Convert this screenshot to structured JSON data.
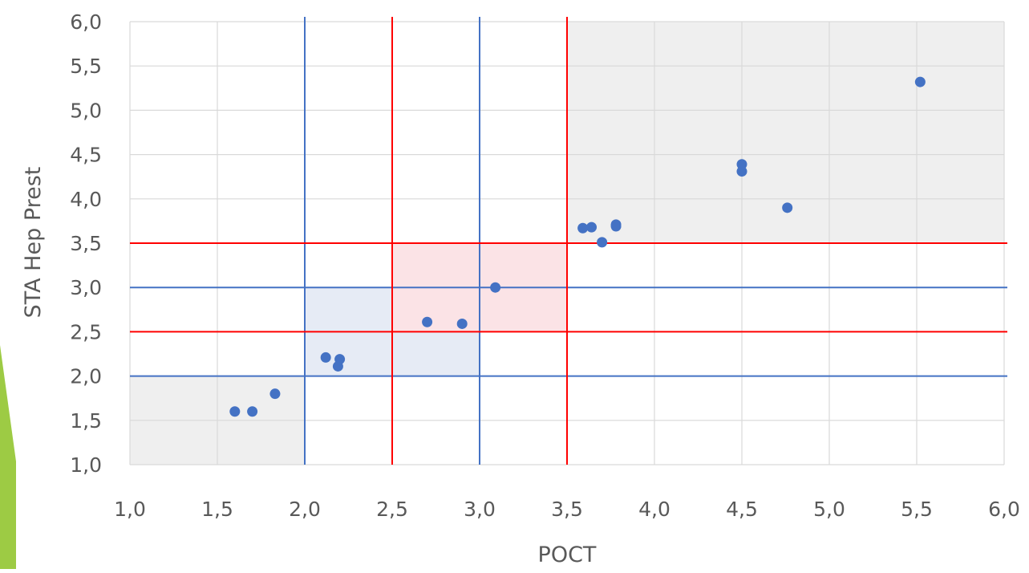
{
  "chart_data": {
    "type": "scatter",
    "title": "",
    "xlabel": "POCT",
    "ylabel": "STA Hep Prest",
    "xlim": [
      1.0,
      6.0
    ],
    "ylim": [
      1.0,
      6.0
    ],
    "x_ticks": [
      "1,0",
      "1,5",
      "2,0",
      "2,5",
      "3,0",
      "3,5",
      "4,0",
      "4,5",
      "5,0",
      "5,5",
      "6,0"
    ],
    "y_ticks": [
      "1,0",
      "1,5",
      "2,0",
      "2,5",
      "3,0",
      "3,5",
      "4,0",
      "4,5",
      "5,0",
      "5,5",
      "6,0"
    ],
    "grid": true,
    "legend": "none",
    "series": [
      {
        "color": "#4472C4",
        "points": [
          {
            "x": 1.6,
            "y": 1.6
          },
          {
            "x": 1.7,
            "y": 1.6
          },
          {
            "x": 1.83,
            "y": 1.8
          },
          {
            "x": 2.12,
            "y": 2.21
          },
          {
            "x": 2.2,
            "y": 2.19
          },
          {
            "x": 2.19,
            "y": 2.11
          },
          {
            "x": 2.7,
            "y": 2.61
          },
          {
            "x": 2.9,
            "y": 2.59
          },
          {
            "x": 3.09,
            "y": 3.0
          },
          {
            "x": 3.59,
            "y": 3.67
          },
          {
            "x": 3.64,
            "y": 3.68
          },
          {
            "x": 3.7,
            "y": 3.51
          },
          {
            "x": 3.78,
            "y": 3.69
          },
          {
            "x": 3.78,
            "y": 3.71
          },
          {
            "x": 4.5,
            "y": 4.39
          },
          {
            "x": 4.5,
            "y": 4.31
          },
          {
            "x": 4.76,
            "y": 3.9
          },
          {
            "x": 5.52,
            "y": 5.32
          }
        ]
      }
    ],
    "reference_lines": [
      {
        "axis": "x",
        "value": 2.0,
        "color": "#4472C4"
      },
      {
        "axis": "x",
        "value": 3.0,
        "color": "#4472C4"
      },
      {
        "axis": "y",
        "value": 2.0,
        "color": "#4472C4"
      },
      {
        "axis": "y",
        "value": 3.0,
        "color": "#4472C4"
      },
      {
        "axis": "x",
        "value": 2.5,
        "color": "#FF0000"
      },
      {
        "axis": "x",
        "value": 3.5,
        "color": "#FF0000"
      },
      {
        "axis": "y",
        "value": 2.5,
        "color": "#FF0000"
      },
      {
        "axis": "y",
        "value": 3.5,
        "color": "#FF0000"
      }
    ],
    "shaded_regions": [
      {
        "x": [
          1.0,
          2.0
        ],
        "y": [
          1.0,
          2.0
        ],
        "color": "#EFEFEF"
      },
      {
        "x": [
          3.5,
          6.0
        ],
        "y": [
          3.5,
          6.0
        ],
        "color": "#EFEFEF"
      },
      {
        "x": [
          2.0,
          3.0
        ],
        "y": [
          2.0,
          3.0
        ],
        "color": "#E6EBF5"
      },
      {
        "x": [
          2.5,
          3.5
        ],
        "y": [
          2.5,
          3.5
        ],
        "color": "#FBE3E6"
      }
    ]
  },
  "decoration": {
    "accent_color": "#9DCB44"
  }
}
